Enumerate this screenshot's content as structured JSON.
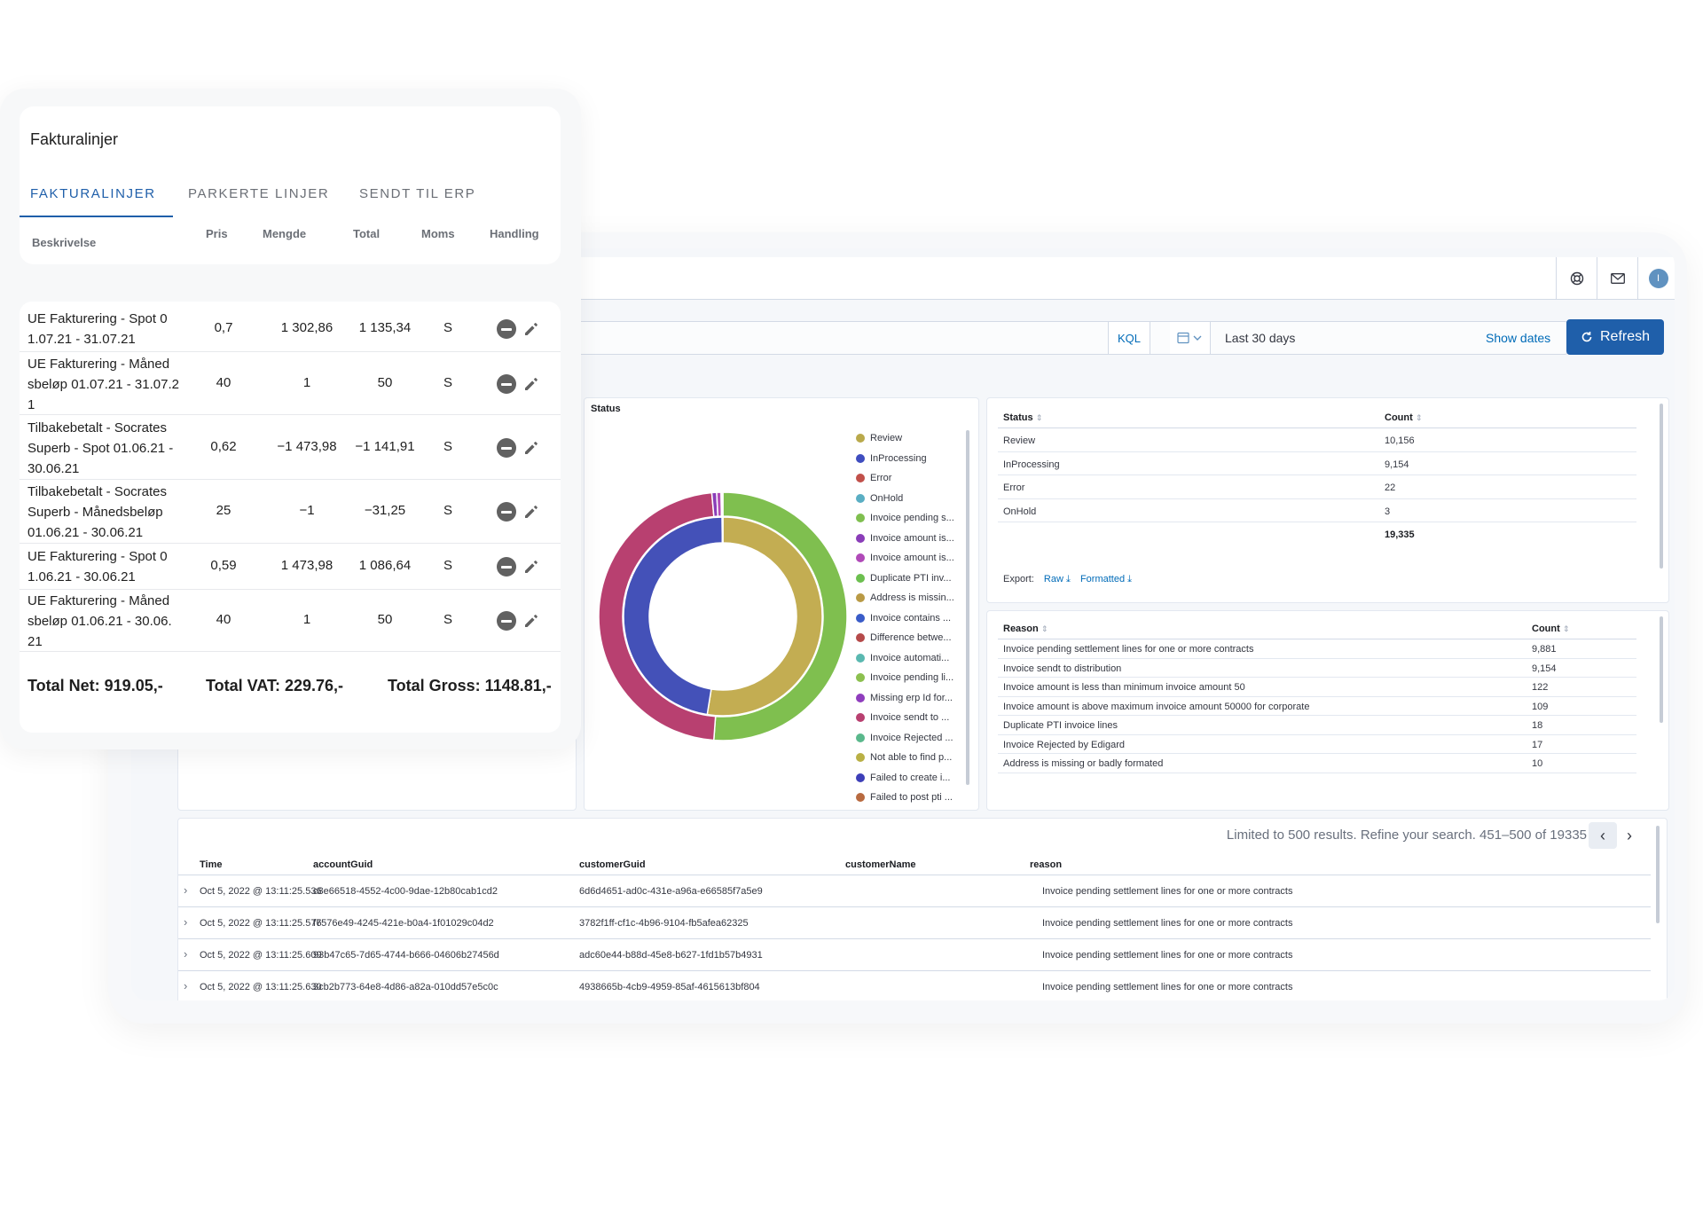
{
  "colors": {
    "accent": "#1f5faa",
    "link": "#006bb8"
  },
  "topbar": {
    "help_icon": "help-icon",
    "mail_icon": "mail-icon",
    "avatar_initial": "I"
  },
  "querybar": {
    "kql_label": "KQL",
    "date_range": "Last 30 days",
    "show_dates": "Show dates",
    "refresh_label": "Refresh"
  },
  "donut": {
    "title": "Status",
    "legend": [
      "Review",
      "InProcessing",
      "Error",
      "OnHold",
      "Invoice pending s...",
      "Invoice amount is...",
      "Invoice amount is...",
      "Duplicate PTI inv...",
      "Address is missin...",
      "Invoice contains ...",
      "Difference betwe...",
      "Invoice automati...",
      "Invoice pending li...",
      "Missing erp Id for...",
      "Invoice sendt to ...",
      "Invoice Rejected ...",
      "Not able to find p...",
      "Failed to create i...",
      "Failed to post pti ..."
    ],
    "legend_colors": [
      "#b9a94b",
      "#3f4dbf",
      "#c1504a",
      "#5aaec3",
      "#7fbf4f",
      "#8a3db8",
      "#b04ab8",
      "#6cbf4f",
      "#b99a45",
      "#3a5cc8",
      "#b54a4a",
      "#5ab8b0",
      "#8cc04f",
      "#8f3dbd",
      "#b84070",
      "#5ab88c",
      "#b9b045",
      "#3d3fb8",
      "#b86a40"
    ]
  },
  "chart_data": {
    "type": "pie",
    "title": "Status",
    "rings": [
      {
        "name": "Status",
        "labels": [
          "Review",
          "InProcessing",
          "Error",
          "OnHold"
        ],
        "values": [
          10156,
          9154,
          22,
          3
        ],
        "colors": [
          "#c3ad52",
          "#4451b8",
          "#c1504a",
          "#5aaec3"
        ]
      },
      {
        "name": "Reason",
        "labels": [
          "Invoice pending settlement lines for one or more contracts",
          "Invoice sendt to distribution",
          "Invoice amount is less than minimum invoice amount 50",
          "Invoice amount is above maximum invoice amount 50000 for corporate",
          "Duplicate PTI invoice lines",
          "Invoice Rejected by Edigard",
          "Address is missing or badly formated"
        ],
        "values": [
          9881,
          9154,
          122,
          109,
          18,
          17,
          10
        ],
        "colors": [
          "#7fbf4f",
          "#b84070",
          "#8a3db8",
          "#b04ab8",
          "#6cbf4f",
          "#5ab88c",
          "#b99a45"
        ]
      }
    ]
  },
  "status_table": {
    "headers": [
      "Status",
      "Count"
    ],
    "rows": [
      [
        "Review",
        "10,156"
      ],
      [
        "InProcessing",
        "9,154"
      ],
      [
        "Error",
        "22"
      ],
      [
        "OnHold",
        "3"
      ]
    ],
    "total": "19,335",
    "export_label": "Export:",
    "raw_label": "Raw",
    "formatted_label": "Formatted"
  },
  "reason_table": {
    "headers": [
      "Reason",
      "Count"
    ],
    "rows": [
      [
        "Invoice pending settlement lines for one or more contracts",
        "9,881"
      ],
      [
        "Invoice sendt to distribution",
        "9,154"
      ],
      [
        "Invoice amount is less than minimum invoice amount 50",
        "122"
      ],
      [
        "Invoice amount is above maximum invoice amount 50000 for corporate",
        "109"
      ],
      [
        "Duplicate PTI invoice lines",
        "18"
      ],
      [
        "Invoice Rejected by Edigard",
        "17"
      ],
      [
        "Address is missing or badly formated",
        "10"
      ]
    ]
  },
  "docs": {
    "info": "Limited to 500 results. Refine your search.   451–500 of 19335",
    "headers": [
      "Time",
      "accountGuid",
      "customerGuid",
      "customerName",
      "reason"
    ],
    "rows": [
      [
        "Oct 5, 2022 @ 13:11:25.536",
        "c8e66518-4552-4c00-9dae-12b80cab1cd2",
        "6d6d4651-ad0c-431e-a96a-e66585f7a5e9",
        "",
        "Invoice pending settlement lines for one or more contracts"
      ],
      [
        "Oct 5, 2022 @ 13:11:25.576",
        "f7576e49-4245-421e-b0a4-1f01029c04d2",
        "3782f1ff-cf1c-4b96-9104-fb5afea62325",
        "",
        "Invoice pending settlement lines for one or more contracts"
      ],
      [
        "Oct 5, 2022 @ 13:11:25.609",
        "93b47c65-7d65-4744-b666-04606b27456d",
        "adc60e44-b88d-45e8-b627-1fd1b57b4931",
        "",
        "Invoice pending settlement lines for one or more contracts"
      ],
      [
        "Oct 5, 2022 @ 13:11:25.630",
        "3cb2b773-64e8-4d86-a82a-010dd57e5c0c",
        "4938665b-4cb9-4959-85af-4615613bf804",
        "",
        "Invoice pending settlement lines for one or more contracts"
      ]
    ]
  },
  "faktura": {
    "title": "Fakturalinjer",
    "tabs": [
      "FAKTURALINJER",
      "PARKERTE LINJER",
      "SENDT TIL ERP"
    ],
    "active_tab": 0,
    "headers": {
      "beskrivelse": "Beskrivelse",
      "pris": "Pris",
      "mengde": "Mengde",
      "total": "Total",
      "moms": "Moms",
      "handling": "Handling"
    },
    "rows": [
      {
        "desc": "UE Fakturering - Spot 0\n1.07.21 - 31.07.21",
        "pris": "0,7",
        "mengde": "1 302,86",
        "total": "1 135,34",
        "moms": "S"
      },
      {
        "desc": "UE Fakturering - Måned\nsbeløp 01.07.21 - 31.07.2\n1",
        "pris": "40",
        "mengde": "1",
        "total": "50",
        "moms": "S"
      },
      {
        "desc": "Tilbakebetalt - Socrates\nSuperb - Spot 01.06.21 -\n30.06.21",
        "pris": "0,62",
        "mengde": "−1 473,98",
        "total": "−1 141,91",
        "moms": "S"
      },
      {
        "desc": "Tilbakebetalt - Socrates\nSuperb - Månedsbeløp\n01.06.21 - 30.06.21",
        "pris": "25",
        "mengde": "−1",
        "total": "−31,25",
        "moms": "S"
      },
      {
        "desc": "UE Fakturering - Spot 0\n1.06.21 - 30.06.21",
        "pris": "0,59",
        "mengde": "1 473,98",
        "total": "1 086,64",
        "moms": "S"
      },
      {
        "desc": "UE Fakturering - Måned\nsbeløp 01.06.21 - 30.06.\n21",
        "pris": "40",
        "mengde": "1",
        "total": "50",
        "moms": "S"
      }
    ],
    "totals": {
      "net": "Total Net: 919.05,-",
      "vat": "Total VAT: 229.76,-",
      "gross": "Total Gross: 1148.81,-"
    }
  }
}
